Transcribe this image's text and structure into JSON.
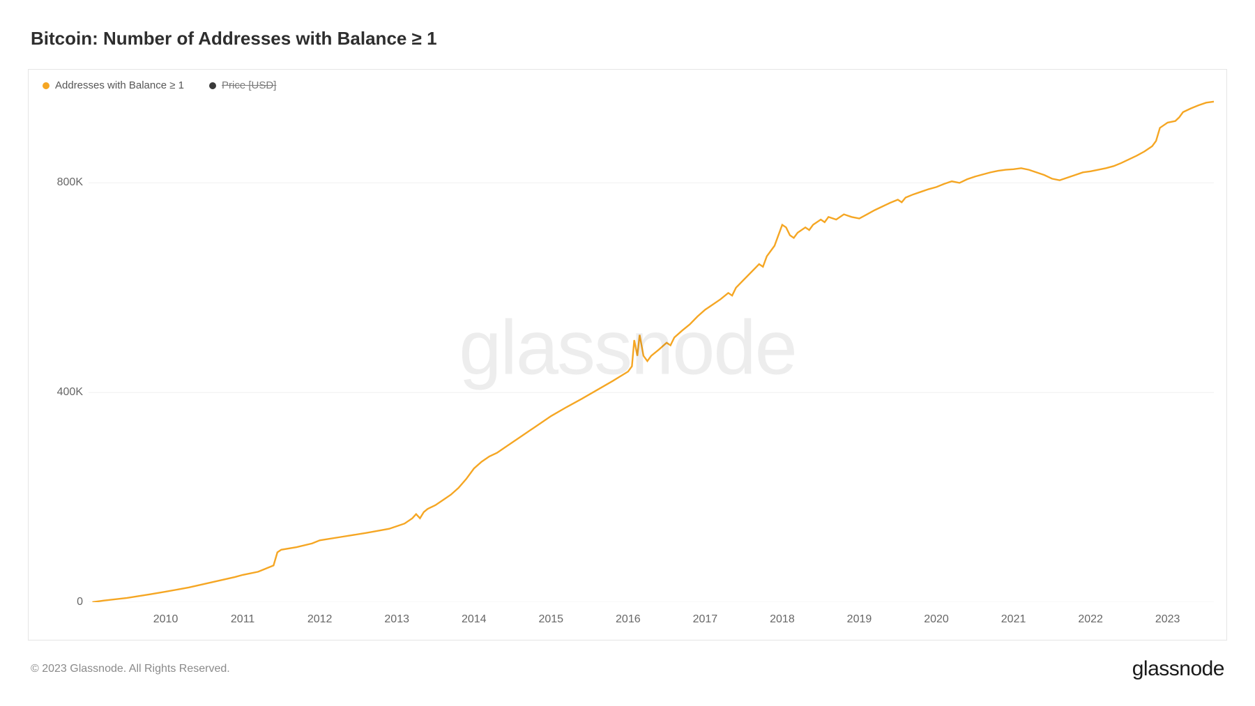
{
  "title": "Bitcoin: Number of Addresses with Balance ≥ 1",
  "legend": {
    "series1": {
      "label": "Addresses with Balance ≥ 1",
      "color": "#f5a623"
    },
    "series2": {
      "label": "Price [USD]",
      "color": "#3a3a3a",
      "disabled": true
    }
  },
  "watermark": "glassnode",
  "chart": {
    "type": "line",
    "background_color": "#ffffff",
    "border_color": "#e5e5e5",
    "grid_color": "#f0f0f0",
    "line_color": "#f5a623",
    "line_width": 2.4,
    "x": {
      "min": 2009.0,
      "max": 2023.6,
      "ticks": [
        2010,
        2011,
        2012,
        2013,
        2014,
        2015,
        2016,
        2017,
        2018,
        2019,
        2020,
        2021,
        2022,
        2023
      ],
      "tick_labels": [
        "2010",
        "2011",
        "2012",
        "2013",
        "2014",
        "2015",
        "2016",
        "2017",
        "2018",
        "2019",
        "2020",
        "2021",
        "2022",
        "2023"
      ]
    },
    "y": {
      "min": 0,
      "max": 1000000,
      "ticks": [
        0,
        400000,
        800000
      ],
      "tick_labels": [
        "0",
        "400K",
        "800K"
      ]
    },
    "series": [
      {
        "name": "Addresses with Balance ≥ 1",
        "color": "#f5a623",
        "points": [
          [
            2009.05,
            0
          ],
          [
            2009.2,
            3000
          ],
          [
            2009.5,
            8000
          ],
          [
            2009.8,
            15000
          ],
          [
            2010.0,
            20000
          ],
          [
            2010.3,
            28000
          ],
          [
            2010.6,
            38000
          ],
          [
            2010.9,
            48000
          ],
          [
            2011.0,
            52000
          ],
          [
            2011.2,
            58000
          ],
          [
            2011.4,
            70000
          ],
          [
            2011.45,
            95000
          ],
          [
            2011.5,
            100000
          ],
          [
            2011.7,
            105000
          ],
          [
            2011.9,
            112000
          ],
          [
            2012.0,
            118000
          ],
          [
            2012.3,
            125000
          ],
          [
            2012.6,
            132000
          ],
          [
            2012.9,
            140000
          ],
          [
            2013.0,
            145000
          ],
          [
            2013.1,
            150000
          ],
          [
            2013.2,
            160000
          ],
          [
            2013.25,
            168000
          ],
          [
            2013.3,
            160000
          ],
          [
            2013.35,
            172000
          ],
          [
            2013.4,
            178000
          ],
          [
            2013.5,
            185000
          ],
          [
            2013.6,
            195000
          ],
          [
            2013.7,
            205000
          ],
          [
            2013.8,
            218000
          ],
          [
            2013.9,
            235000
          ],
          [
            2014.0,
            255000
          ],
          [
            2014.1,
            268000
          ],
          [
            2014.2,
            278000
          ],
          [
            2014.3,
            285000
          ],
          [
            2014.4,
            295000
          ],
          [
            2014.5,
            305000
          ],
          [
            2014.6,
            315000
          ],
          [
            2014.8,
            335000
          ],
          [
            2015.0,
            355000
          ],
          [
            2015.2,
            372000
          ],
          [
            2015.4,
            388000
          ],
          [
            2015.6,
            405000
          ],
          [
            2015.8,
            422000
          ],
          [
            2016.0,
            440000
          ],
          [
            2016.05,
            450000
          ],
          [
            2016.08,
            500000
          ],
          [
            2016.12,
            470000
          ],
          [
            2016.15,
            510000
          ],
          [
            2016.2,
            470000
          ],
          [
            2016.25,
            460000
          ],
          [
            2016.3,
            470000
          ],
          [
            2016.4,
            482000
          ],
          [
            2016.5,
            495000
          ],
          [
            2016.55,
            490000
          ],
          [
            2016.6,
            505000
          ],
          [
            2016.7,
            518000
          ],
          [
            2016.8,
            530000
          ],
          [
            2016.9,
            545000
          ],
          [
            2017.0,
            558000
          ],
          [
            2017.1,
            568000
          ],
          [
            2017.2,
            578000
          ],
          [
            2017.3,
            590000
          ],
          [
            2017.35,
            585000
          ],
          [
            2017.4,
            600000
          ],
          [
            2017.5,
            615000
          ],
          [
            2017.6,
            630000
          ],
          [
            2017.7,
            645000
          ],
          [
            2017.75,
            640000
          ],
          [
            2017.8,
            660000
          ],
          [
            2017.9,
            680000
          ],
          [
            2017.95,
            700000
          ],
          [
            2018.0,
            720000
          ],
          [
            2018.05,
            715000
          ],
          [
            2018.1,
            700000
          ],
          [
            2018.15,
            695000
          ],
          [
            2018.2,
            705000
          ],
          [
            2018.3,
            715000
          ],
          [
            2018.35,
            710000
          ],
          [
            2018.4,
            720000
          ],
          [
            2018.5,
            730000
          ],
          [
            2018.55,
            725000
          ],
          [
            2018.6,
            735000
          ],
          [
            2018.7,
            730000
          ],
          [
            2018.8,
            740000
          ],
          [
            2018.9,
            735000
          ],
          [
            2019.0,
            732000
          ],
          [
            2019.1,
            740000
          ],
          [
            2019.2,
            748000
          ],
          [
            2019.3,
            755000
          ],
          [
            2019.4,
            762000
          ],
          [
            2019.5,
            768000
          ],
          [
            2019.55,
            763000
          ],
          [
            2019.6,
            772000
          ],
          [
            2019.7,
            778000
          ],
          [
            2019.8,
            783000
          ],
          [
            2019.9,
            788000
          ],
          [
            2020.0,
            792000
          ],
          [
            2020.1,
            798000
          ],
          [
            2020.2,
            803000
          ],
          [
            2020.3,
            800000
          ],
          [
            2020.4,
            807000
          ],
          [
            2020.5,
            812000
          ],
          [
            2020.6,
            816000
          ],
          [
            2020.7,
            820000
          ],
          [
            2020.8,
            823000
          ],
          [
            2020.9,
            825000
          ],
          [
            2021.0,
            826000
          ],
          [
            2021.1,
            828000
          ],
          [
            2021.2,
            825000
          ],
          [
            2021.3,
            820000
          ],
          [
            2021.4,
            815000
          ],
          [
            2021.5,
            808000
          ],
          [
            2021.6,
            805000
          ],
          [
            2021.7,
            810000
          ],
          [
            2021.8,
            815000
          ],
          [
            2021.9,
            820000
          ],
          [
            2022.0,
            822000
          ],
          [
            2022.1,
            825000
          ],
          [
            2022.2,
            828000
          ],
          [
            2022.3,
            832000
          ],
          [
            2022.4,
            838000
          ],
          [
            2022.5,
            845000
          ],
          [
            2022.6,
            852000
          ],
          [
            2022.7,
            860000
          ],
          [
            2022.8,
            870000
          ],
          [
            2022.85,
            880000
          ],
          [
            2022.9,
            905000
          ],
          [
            2022.95,
            910000
          ],
          [
            2023.0,
            915000
          ],
          [
            2023.1,
            918000
          ],
          [
            2023.15,
            925000
          ],
          [
            2023.2,
            935000
          ],
          [
            2023.3,
            942000
          ],
          [
            2023.4,
            948000
          ],
          [
            2023.5,
            953000
          ],
          [
            2023.6,
            955000
          ]
        ]
      }
    ]
  },
  "footer": {
    "copyright": "© 2023 Glassnode. All Rights Reserved.",
    "brand": "glassnode"
  }
}
